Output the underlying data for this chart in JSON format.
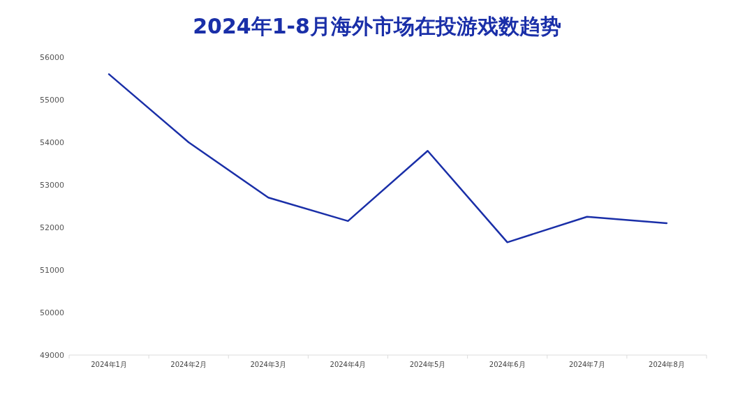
{
  "chart_data": {
    "type": "line",
    "title": "2024年1-8月海外市场在投游戏数趋势",
    "categories": [
      "2024年1月",
      "2024年2月",
      "2024年3月",
      "2024年4月",
      "2024年5月",
      "2024年6月",
      "2024年7月",
      "2024年8月"
    ],
    "series": [
      {
        "color": "#1a2fa8",
        "values": [
          55600,
          54000,
          52700,
          52150,
          53800,
          51650,
          52250,
          52100
        ]
      }
    ],
    "ylim": [
      49000,
      56000
    ],
    "yticks": [
      49000,
      50000,
      51000,
      52000,
      53000,
      54000,
      55000,
      56000
    ],
    "grid": false,
    "marker": "none",
    "line_style": "solid"
  }
}
